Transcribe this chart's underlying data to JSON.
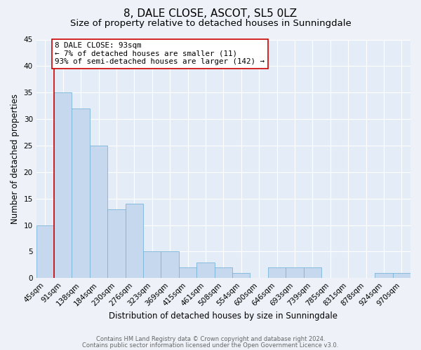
{
  "title": "8, DALE CLOSE, ASCOT, SL5 0LZ",
  "subtitle": "Size of property relative to detached houses in Sunningdale",
  "xlabel": "Distribution of detached houses by size in Sunningdale",
  "ylabel": "Number of detached properties",
  "bar_labels": [
    "45sqm",
    "91sqm",
    "138sqm",
    "184sqm",
    "230sqm",
    "276sqm",
    "323sqm",
    "369sqm",
    "415sqm",
    "461sqm",
    "508sqm",
    "554sqm",
    "600sqm",
    "646sqm",
    "693sqm",
    "739sqm",
    "785sqm",
    "831sqm",
    "878sqm",
    "924sqm",
    "970sqm"
  ],
  "bar_values": [
    10,
    35,
    32,
    25,
    13,
    14,
    5,
    5,
    2,
    3,
    2,
    1,
    0,
    2,
    2,
    2,
    0,
    0,
    0,
    1,
    1
  ],
  "bar_color": "#c5d8ed",
  "bar_edge_color": "#7ab4d8",
  "ylim": [
    0,
    45
  ],
  "yticks": [
    0,
    5,
    10,
    15,
    20,
    25,
    30,
    35,
    40,
    45
  ],
  "annotation_line_color": "#cc0000",
  "annotation_box_text": "8 DALE CLOSE: 93sqm\n← 7% of detached houses are smaller (11)\n93% of semi-detached houses are larger (142) →",
  "footer_line1": "Contains HM Land Registry data © Crown copyright and database right 2024.",
  "footer_line2": "Contains public sector information licensed under the Open Government Licence v3.0.",
  "bg_color": "#eef2f8",
  "plot_bg_color": "#e4ecf7",
  "grid_color": "#ffffff",
  "title_fontsize": 11,
  "subtitle_fontsize": 9.5,
  "axis_label_fontsize": 8.5,
  "tick_fontsize": 7.5,
  "footer_fontsize": 6.0,
  "annotation_fontsize": 7.8
}
